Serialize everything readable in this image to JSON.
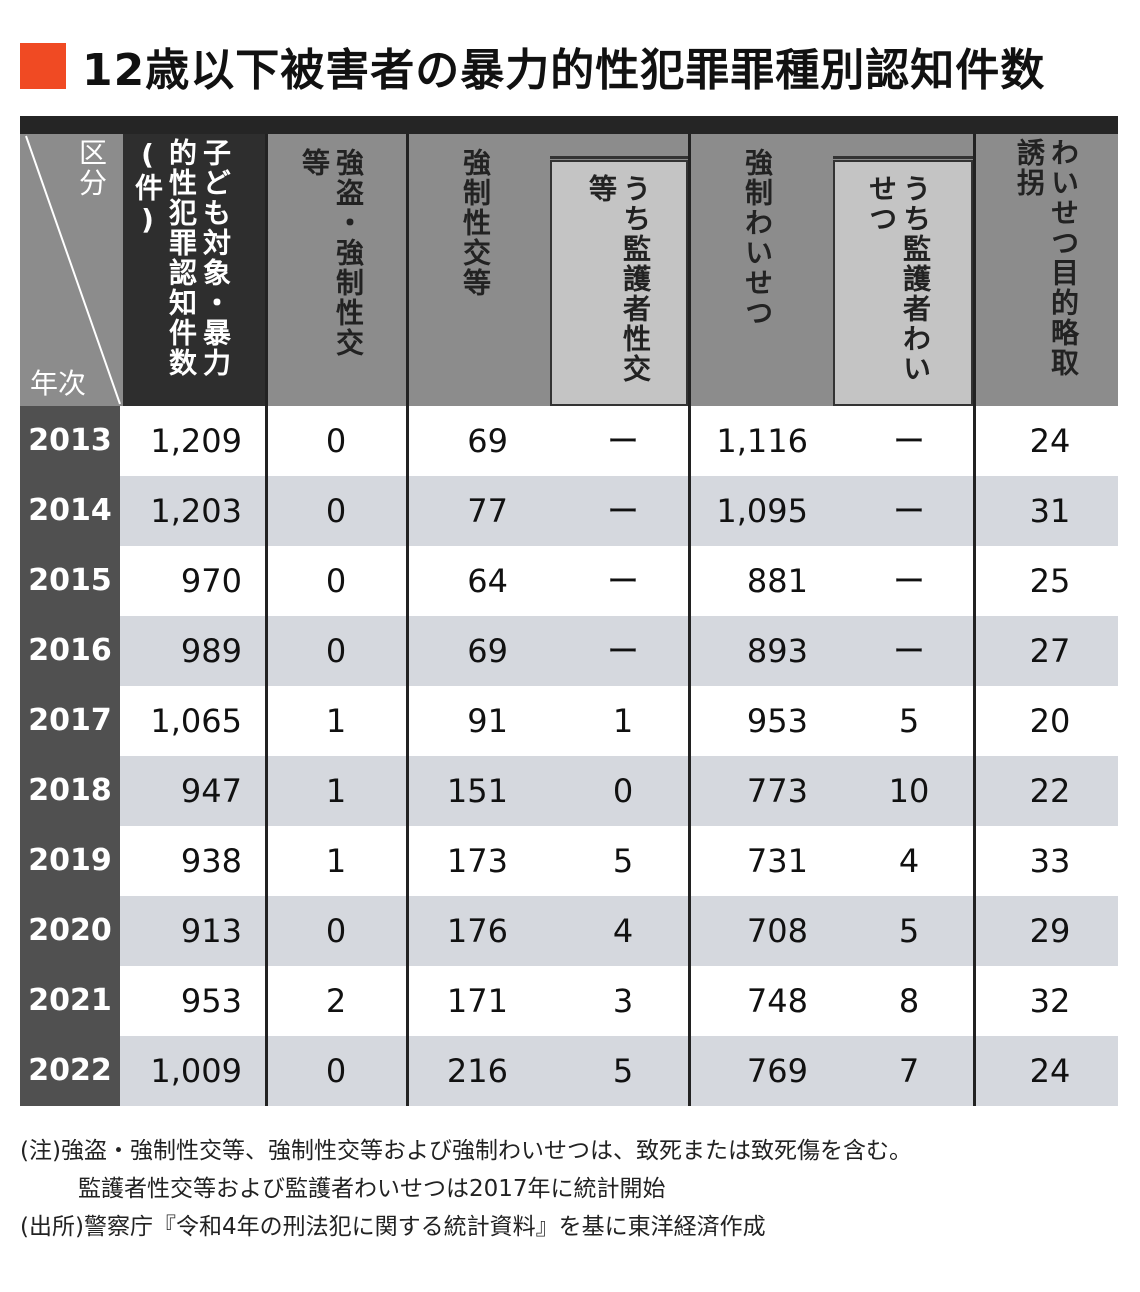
{
  "title": "12歳以下被害者の暴力的性犯罪罪種別認知件数",
  "colors": {
    "accent": "#f04a23"
  },
  "header": {
    "corner_top": "区分",
    "corner_bottom": "年次",
    "col_total": "子ども対象・暴力的性犯罪認知件数(件)",
    "col_robbery": "強盗・強制性交等",
    "col_rape": "強制性交等",
    "col_rape_guardian": "うち監護者性交等",
    "col_indecent": "強制わいせつ",
    "col_indecent_guardian": "うち監護者わいせつ",
    "col_kidnap": "わいせつ目的略取誘拐"
  },
  "chart_data": {
    "type": "table",
    "columns": [
      "年次",
      "子ども対象・暴力的性犯罪認知件数(件)",
      "強盗・強制性交等",
      "強制性交等",
      "うち監護者性交等",
      "強制わいせつ",
      "うち監護者わいせつ",
      "わいせつ目的略取誘拐"
    ],
    "rows": [
      [
        "2013",
        "1,209",
        "0",
        "69",
        "ー",
        "1,116",
        "ー",
        "24"
      ],
      [
        "2014",
        "1,203",
        "0",
        "77",
        "ー",
        "1,095",
        "ー",
        "31"
      ],
      [
        "2015",
        "970",
        "0",
        "64",
        "ー",
        "881",
        "ー",
        "25"
      ],
      [
        "2016",
        "989",
        "0",
        "69",
        "ー",
        "893",
        "ー",
        "27"
      ],
      [
        "2017",
        "1,065",
        "1",
        "91",
        "1",
        "953",
        "5",
        "20"
      ],
      [
        "2018",
        "947",
        "1",
        "151",
        "0",
        "773",
        "10",
        "22"
      ],
      [
        "2019",
        "938",
        "1",
        "173",
        "5",
        "731",
        "4",
        "33"
      ],
      [
        "2020",
        "913",
        "0",
        "176",
        "4",
        "708",
        "5",
        "29"
      ],
      [
        "2021",
        "953",
        "2",
        "171",
        "3",
        "748",
        "8",
        "32"
      ],
      [
        "2022",
        "1,009",
        "0",
        "216",
        "5",
        "769",
        "7",
        "24"
      ]
    ]
  },
  "notes": {
    "line1": "(注)強盗・強制性交等、強制性交等および強制わいせつは、致死または致死傷を含む。",
    "line2": "監護者性交等および監護者わいせつは2017年に統計開始",
    "line3": "(出所)警察庁『令和4年の刑法犯に関する統計資料』を基に東洋経済作成"
  }
}
